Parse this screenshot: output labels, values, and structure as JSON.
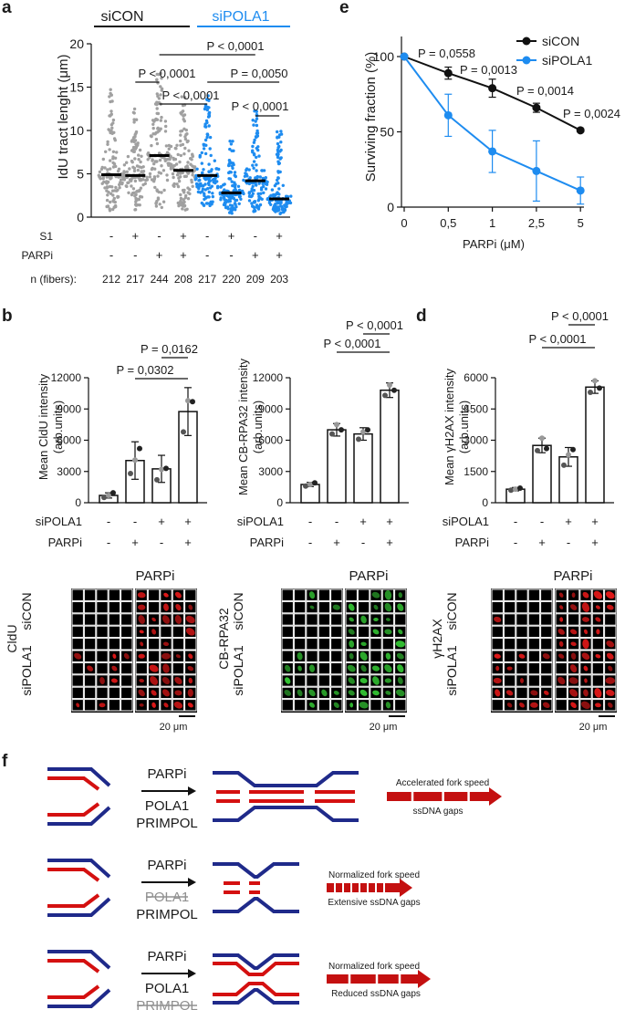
{
  "colors": {
    "grey": "#a0a0a0",
    "blue": "#1e8cf0",
    "black": "#111111",
    "red": "#e01818",
    "green": "#33c233",
    "navy": "#1f2a8a",
    "strandRed": "#d41010",
    "arrowRed": "#c41010",
    "strike": "#909090"
  },
  "panel_a": {
    "letter": "a",
    "header_sicon": "siCON",
    "header_sipola1": "siPOLA1",
    "row_labels": {
      "s1": "S1",
      "parpi": "PARPi",
      "n": "n (fibers):"
    },
    "s1": [
      "-",
      "+",
      "-",
      "+",
      "-",
      "+",
      "-",
      "+"
    ],
    "parpi": [
      "-",
      "-",
      "+",
      "+",
      "-",
      "-",
      "+",
      "+"
    ],
    "n": [
      "212",
      "217",
      "244",
      "208",
      "217",
      "220",
      "209",
      "203"
    ],
    "pvals": [
      "P < 0,0001",
      "P < 0,0001",
      "P = 0,0050",
      "P < 0,0001",
      "P < 0,0001"
    ],
    "chart_data": {
      "type": "scatter",
      "title": "",
      "xlabel": "",
      "ylabel": "IdU tract lenght (μm)",
      "ylim": [
        0,
        20
      ],
      "yticks": [
        "0",
        "5",
        "10",
        "15",
        "20"
      ],
      "categories": [
        "siCON -/-",
        "siCON S1/-",
        "siCON -/PARPi",
        "siCON S1/PARPi",
        "siPOLA1 -/-",
        "siPOLA1 S1/-",
        "siPOLA1 -/PARPi",
        "siPOLA1 S1/PARPi"
      ],
      "medians": [
        4.9,
        4.8,
        7.1,
        5.4,
        4.8,
        2.8,
        4.2,
        2.1
      ],
      "spread_max": [
        14.8,
        13.5,
        16.8,
        15.0,
        14.5,
        9.0,
        12.5,
        10.0
      ]
    }
  },
  "panel_b": {
    "letter": "b",
    "row_labels": [
      "siPOLA1",
      "PARPi"
    ],
    "sipola1": [
      "-",
      "-",
      "+",
      "+"
    ],
    "parpi": [
      "-",
      "+",
      "-",
      "+"
    ],
    "pvals": [
      "P = 0,0162",
      "P = 0,0302"
    ],
    "chart_data": {
      "type": "bar",
      "ylabel": "Mean CldU intensity (arb.units)",
      "ylim": [
        0,
        12000
      ],
      "yticks": [
        "0",
        "3000",
        "6000",
        "9000",
        "12000"
      ],
      "categories": [
        "-/-",
        "-/PARPi",
        "siPOLA1/-",
        "siPOLA1/PARPi"
      ],
      "values": [
        700,
        4050,
        3250,
        8750
      ],
      "errors": [
        250,
        1800,
        1300,
        2300
      ],
      "points": [
        [
          500,
          700,
          950
        ],
        [
          2800,
          4100,
          5200
        ],
        [
          2200,
          3200,
          3300
        ],
        [
          6800,
          9800,
          9700
        ]
      ]
    }
  },
  "panel_c": {
    "letter": "c",
    "row_labels": [
      "siPOLA1",
      "PARPi"
    ],
    "sipola1": [
      "-",
      "-",
      "+",
      "+"
    ],
    "parpi": [
      "-",
      "+",
      "-",
      "+"
    ],
    "pvals": [
      "P < 0,0001",
      "P < 0,0001"
    ],
    "chart_data": {
      "type": "bar",
      "ylabel": "Mean CB-RPA32 intensity (arb.units)",
      "ylim": [
        0,
        12000
      ],
      "yticks": [
        "0",
        "3000",
        "6000",
        "9000",
        "12000"
      ],
      "categories": [
        "-/-",
        "-/PARPi",
        "siPOLA1/-",
        "siPOLA1/PARPi"
      ],
      "values": [
        1750,
        7000,
        6600,
        10800
      ],
      "errors": [
        200,
        600,
        600,
        700
      ],
      "points": [
        [
          1600,
          1750,
          1900
        ],
        [
          6600,
          7500,
          7000
        ],
        [
          6100,
          6800,
          7000
        ],
        [
          10300,
          11300,
          10800
        ]
      ]
    }
  },
  "panel_d": {
    "letter": "d",
    "row_labels": [
      "siPOLA1",
      "PARPi"
    ],
    "sipola1": [
      "-",
      "-",
      "+",
      "+"
    ],
    "parpi": [
      "-",
      "+",
      "-",
      "+"
    ],
    "pvals": [
      "P < 0,0001",
      "P < 0,0001"
    ],
    "chart_data": {
      "type": "bar",
      "ylabel": "Mean γH2AX intensity (arb.units)",
      "ylim": [
        0,
        6000
      ],
      "yticks": [
        "0",
        "1500",
        "3000",
        "4500",
        "6000"
      ],
      "categories": [
        "-/-",
        "-/PARPi",
        "siPOLA1/-",
        "siPOLA1/PARPi"
      ],
      "values": [
        650,
        2750,
        2200,
        5550
      ],
      "errors": [
        80,
        350,
        450,
        300
      ],
      "points": [
        [
          600,
          650,
          700
        ],
        [
          2500,
          3100,
          2600
        ],
        [
          1800,
          2300,
          2550
        ],
        [
          5300,
          5850,
          5500
        ]
      ]
    }
  },
  "panel_e": {
    "letter": "e",
    "legend": [
      "siCON",
      "siPOLA1"
    ],
    "pvals": [
      "P = 0,0558",
      "P = 0,0013",
      "P = 0,0014",
      "P = 0,0024"
    ],
    "chart_data": {
      "type": "line",
      "xlabel": "PARPi (μM)",
      "ylabel": "Surviving fraction (%)",
      "ylim": [
        0,
        100
      ],
      "yticks": [
        "0",
        "50",
        "100"
      ],
      "x": [
        "0",
        "0,5",
        "1",
        "2,5",
        "5"
      ],
      "series": [
        {
          "name": "siCON",
          "values": [
            100,
            89,
            79,
            66,
            51
          ],
          "errors": [
            0,
            4,
            6,
            3,
            1
          ]
        },
        {
          "name": "siPOLA1",
          "values": [
            100,
            61,
            37,
            24,
            11
          ],
          "errors": [
            0,
            14,
            14,
            20,
            9
          ]
        }
      ]
    }
  },
  "micro": {
    "b": {
      "stain": "CldU",
      "parpi": "PARPi",
      "row1": "siCON",
      "row2": "siPOLA1",
      "scale": "20 μm"
    },
    "c": {
      "stain": "CB-RPA32",
      "parpi": "PARPi",
      "row1": "siCON",
      "row2": "siPOLA1",
      "scale": "20 μm"
    },
    "d": {
      "stain": "γH2AX",
      "parpi": "PARPi",
      "row1": "siCON",
      "row2": "siPOLA1",
      "scale": "20 μm"
    }
  },
  "panel_f": {
    "letter": "f",
    "rows": [
      {
        "top": "PARPi",
        "mid": "POLA1",
        "bot": "PRIMPOL",
        "struck": "",
        "label1": "Accelerated fork speed",
        "label2": "ssDNA gaps"
      },
      {
        "top": "PARPi",
        "mid": "POLA1",
        "bot": "PRIMPOL",
        "struck": "mid",
        "label1": "Normalized fork speed",
        "label2": "Extensive ssDNA gaps"
      },
      {
        "top": "PARPi",
        "mid": "POLA1",
        "bot": "PRIMPOL",
        "struck": "bot",
        "label1": "Normalized fork speed",
        "label2": "Reduced ssDNA gaps"
      }
    ]
  }
}
